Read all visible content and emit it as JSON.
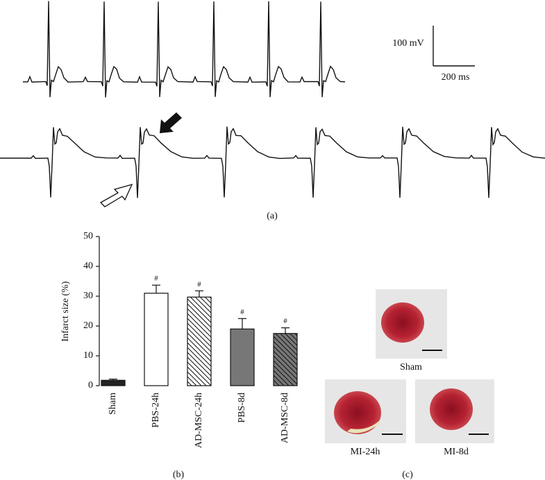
{
  "chart_data": {
    "type": "bar",
    "y_label": "Infarct size (%)",
    "categories": [
      "Sham",
      "PBS-24h",
      "AD-MSC-24h",
      "PBS-8d",
      "AD-MSC-8d"
    ],
    "values": [
      1.8,
      31,
      29.7,
      19,
      17.5
    ],
    "errors": [
      0.4,
      2.7,
      2.1,
      3.5,
      1.9
    ],
    "annotations": [
      null,
      "#",
      "#",
      "#",
      "#"
    ],
    "colors": [
      "#222222",
      "#ffffff",
      "#ffffff",
      "#777777",
      "#777777"
    ],
    "hatch": [
      false,
      false,
      true,
      false,
      true
    ],
    "ylim": [
      0,
      50
    ],
    "yticks": [
      0,
      10,
      20,
      30,
      40,
      50
    ]
  },
  "figure": {
    "scale_voltage": "100 mV",
    "scale_time": "200 ms",
    "panel_a": "(a)",
    "panel_b": "(b)",
    "panel_c": "(c)",
    "photos": [
      "Sham",
      "MI-24h",
      "MI-8d"
    ]
  }
}
